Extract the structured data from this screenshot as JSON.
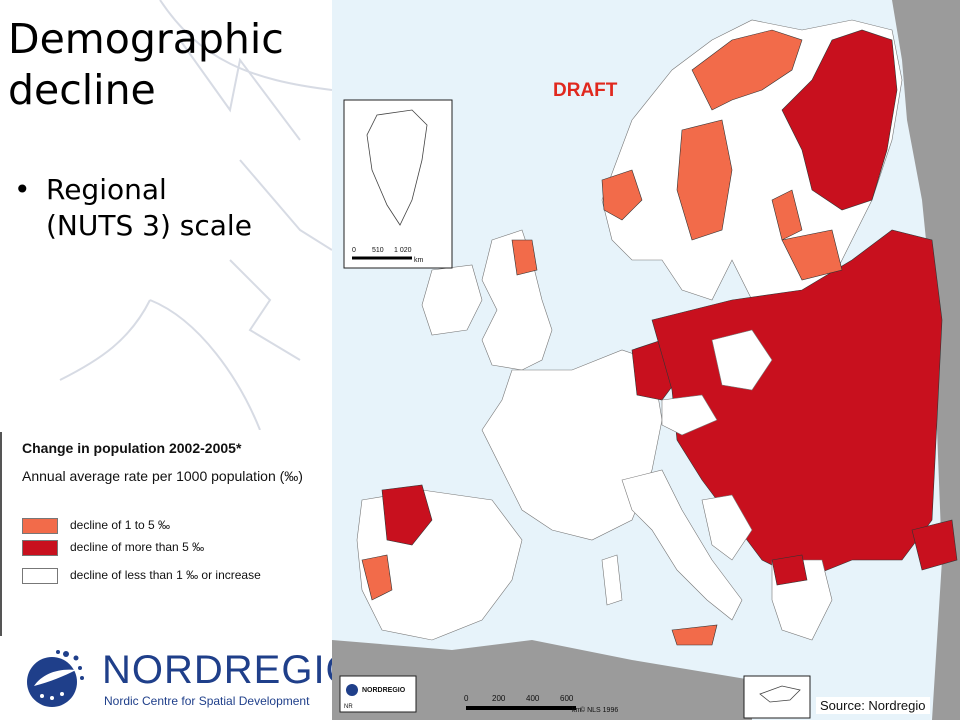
{
  "slide": {
    "title_line1": "Demographic",
    "title_line2": "decline",
    "bullet": "Regional (NUTS 3) scale",
    "bullet_line1": "Regional",
    "bullet_line2": "(NUTS 3) scale"
  },
  "legend": {
    "title": "Change in population 2002-2005*",
    "subtitle": "Annual average rate per 1000 population (‰)",
    "items": [
      {
        "label": "decline of 1 to 5 ‰",
        "color": "#f26b4a"
      },
      {
        "label": "decline of more than 5 ‰",
        "color": "#c8101e"
      },
      {
        "label": "decline of less than 1 ‰ or increase",
        "color": "#ffffff"
      }
    ]
  },
  "logo": {
    "name": "NORDREGIO",
    "tagline": "Nordic Centre for Spatial Development"
  },
  "map": {
    "stamp": "DRAFT",
    "source": "Source: Nordregio",
    "inset_scale": [
      "0",
      "510",
      "1 020",
      "km"
    ],
    "main_scale": [
      "0",
      "200",
      "400",
      "600",
      "km"
    ],
    "copyright": "© NLS 1996",
    "logo_small": "NORDREGIO",
    "logo_small_code": "NR",
    "colors": {
      "sea": "#e7f3fa",
      "land_outside": "#9b9b9b",
      "decline_mild": "#f26b4a",
      "decline_strong": "#c8101e",
      "no_decline": "#ffffff"
    }
  }
}
